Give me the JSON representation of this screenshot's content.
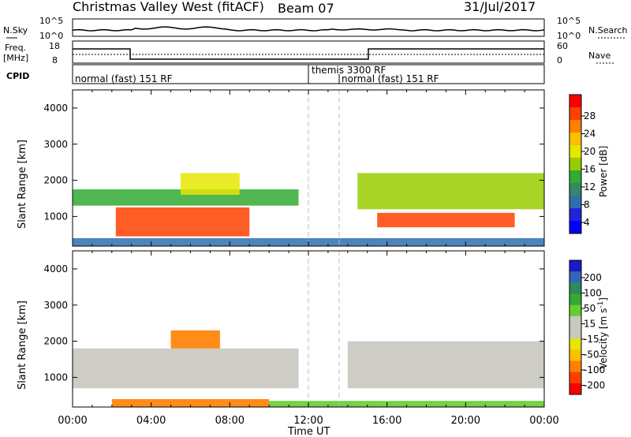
{
  "header": {
    "radar": "Christmas Valley West (fitACF)",
    "beam": "Beam 07",
    "date": "31/Jul/2017"
  },
  "noise_panel": {
    "left_label": "N.Sky",
    "left_tick_top": "10^5",
    "left_tick_bottom": "10^0",
    "right_tick_top": "10^5",
    "right_tick_bottom": "10^0",
    "right_label": "N.Search"
  },
  "freq_panel": {
    "left_label_1": "Freq.",
    "left_label_2": "[MHz]",
    "left_tick_top": "18",
    "left_tick_bottom": "8",
    "right_tick_top": "60",
    "right_tick_bottom": "0",
    "right_label": "Nave"
  },
  "cpid_panel": {
    "label": "CPID",
    "segments": [
      {
        "start": 0,
        "end": 12,
        "text": "normal (fast) 151 RF"
      },
      {
        "start": 12,
        "end": 13.5,
        "text": "themis 3300 RF"
      },
      {
        "start": 13.5,
        "end": 24,
        "text": "normal (fast) 151 RF"
      }
    ]
  },
  "power_scale": {
    "title": "Power [dB]",
    "ticks": [
      "28",
      "24",
      "20",
      "16",
      "12",
      "8",
      "4"
    ],
    "colors": [
      "#ff0000",
      "#ff4000",
      "#ff8000",
      "#ffbf00",
      "#e6e600",
      "#99cc00",
      "#33aa33",
      "#338866",
      "#2f6fb0",
      "#2222dd",
      "#0000ff"
    ]
  },
  "velocity_scale": {
    "title": "Velocity [m s",
    "title_sup": "-1",
    "title_end": "]",
    "ticks": [
      "200",
      "100",
      "50",
      "15",
      "-15",
      "-50",
      "-100",
      "-200"
    ],
    "colors": [
      "#1a1ac8",
      "#3366bb",
      "#2e8b57",
      "#33aa33",
      "#66cc33",
      "#c8c8c0",
      "#c8c8c0",
      "#e6e600",
      "#ffbf00",
      "#ff8000",
      "#ff4000",
      "#ff0000"
    ]
  },
  "axes": {
    "ylabel": "Slant Range [km]",
    "yticks": [
      "4000",
      "3000",
      "2000",
      "1000"
    ],
    "xticks": [
      "00:00",
      "04:00",
      "08:00",
      "12:00",
      "16:00",
      "20:00",
      "00:00"
    ],
    "xlabel": "Time UT"
  },
  "chart_data": {
    "type": "heatmap",
    "title": "Christmas Valley West (fitACF)",
    "xlabel": "Time UT",
    "ylabel": "Slant Range [km]",
    "xlim_hours": [
      0,
      24
    ],
    "ylim_km": [
      180,
      4500
    ],
    "power_regions": [
      {
        "t0": 0.0,
        "t1": 11.5,
        "r0": 1300,
        "r1": 1750,
        "value_db": 12
      },
      {
        "t0": 2.2,
        "t1": 9.0,
        "r0": 450,
        "r1": 1250,
        "value_db": 27
      },
      {
        "t0": 5.5,
        "t1": 8.5,
        "r0": 1600,
        "r1": 2200,
        "value_db": 19
      },
      {
        "t0": 14.5,
        "t1": 24.0,
        "r0": 1200,
        "r1": 2200,
        "value_db": 14
      },
      {
        "t0": 15.5,
        "t1": 22.5,
        "r0": 700,
        "r1": 1100,
        "value_db": 27
      },
      {
        "t0": 0.0,
        "t1": 24.0,
        "r0": 180,
        "r1": 400,
        "value_db": 6
      }
    ],
    "velocity_regions": [
      {
        "t0": 0.0,
        "t1": 11.5,
        "r0": 700,
        "r1": 1800,
        "value_ms": 0
      },
      {
        "t0": 2.0,
        "t1": 10.0,
        "r0": 180,
        "r1": 400,
        "value_ms": -60
      },
      {
        "t0": 5.0,
        "t1": 7.5,
        "r0": 1800,
        "r1": 2300,
        "value_ms": -80
      },
      {
        "t0": 14.0,
        "t1": 24.0,
        "r0": 700,
        "r1": 2000,
        "value_ms": 0
      },
      {
        "t0": 10.0,
        "t1": 24.0,
        "r0": 180,
        "r1": 350,
        "value_ms": 30
      }
    ]
  }
}
